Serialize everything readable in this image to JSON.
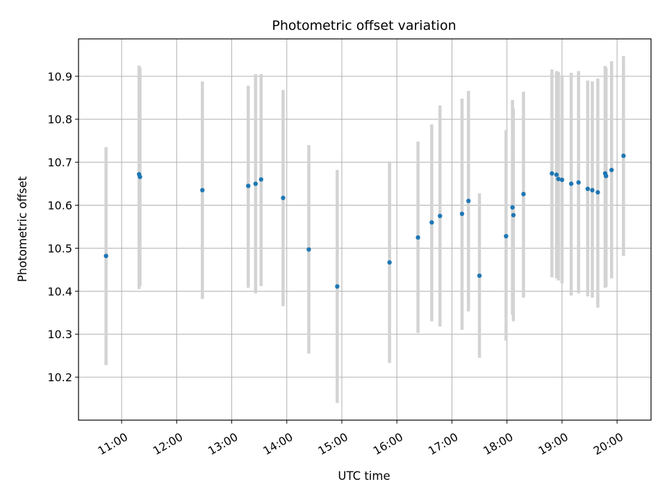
{
  "chart_data": {
    "type": "scatter",
    "title": "Photometric offset variation",
    "xlabel": "UTC time",
    "ylabel": "Photometric offset",
    "xlim": [
      "10:13",
      "20:37"
    ],
    "ylim": [
      10.1,
      10.987
    ],
    "x_ticks": [
      "11:00",
      "12:00",
      "13:00",
      "14:00",
      "15:00",
      "16:00",
      "17:00",
      "18:00",
      "19:00",
      "20:00"
    ],
    "y_ticks": [
      10.2,
      10.3,
      10.4,
      10.5,
      10.6,
      10.7,
      10.8,
      10.9
    ],
    "grid": true,
    "colors": {
      "point": "#1f77b4",
      "errorbar": "#d3d3d3",
      "grid": "#b0b0b0"
    },
    "points": [
      {
        "x": "10:43",
        "y": 10.482,
        "ylow": 10.228,
        "yhigh": 10.735
      },
      {
        "x": "11:19",
        "y": 10.672,
        "ylow": 10.405,
        "yhigh": 10.925
      },
      {
        "x": "11:20",
        "y": 10.666,
        "ylow": 10.412,
        "yhigh": 10.92
      },
      {
        "x": "12:28",
        "y": 10.635,
        "ylow": 10.382,
        "yhigh": 10.888
      },
      {
        "x": "13:18",
        "y": 10.645,
        "ylow": 10.408,
        "yhigh": 10.878
      },
      {
        "x": "13:26",
        "y": 10.65,
        "ylow": 10.395,
        "yhigh": 10.905
      },
      {
        "x": "13:32",
        "y": 10.66,
        "ylow": 10.412,
        "yhigh": 10.905
      },
      {
        "x": "13:56",
        "y": 10.617,
        "ylow": 10.365,
        "yhigh": 10.868
      },
      {
        "x": "14:24",
        "y": 10.497,
        "ylow": 10.255,
        "yhigh": 10.74
      },
      {
        "x": "14:55",
        "y": 10.411,
        "ylow": 10.14,
        "yhigh": 10.682
      },
      {
        "x": "15:52",
        "y": 10.467,
        "ylow": 10.233,
        "yhigh": 10.702
      },
      {
        "x": "16:23",
        "y": 10.525,
        "ylow": 10.303,
        "yhigh": 10.748
      },
      {
        "x": "16:38",
        "y": 10.56,
        "ylow": 10.33,
        "yhigh": 10.788
      },
      {
        "x": "16:47",
        "y": 10.575,
        "ylow": 10.318,
        "yhigh": 10.832
      },
      {
        "x": "17:11",
        "y": 10.58,
        "ylow": 10.31,
        "yhigh": 10.848
      },
      {
        "x": "17:18",
        "y": 10.61,
        "ylow": 10.353,
        "yhigh": 10.866
      },
      {
        "x": "17:30",
        "y": 10.436,
        "ylow": 10.245,
        "yhigh": 10.628
      },
      {
        "x": "17:59",
        "y": 10.528,
        "ylow": 10.285,
        "yhigh": 10.775
      },
      {
        "x": "18:06",
        "y": 10.595,
        "ylow": 10.345,
        "yhigh": 10.845
      },
      {
        "x": "18:07",
        "y": 10.577,
        "ylow": 10.33,
        "yhigh": 10.825
      },
      {
        "x": "18:18",
        "y": 10.626,
        "ylow": 10.385,
        "yhigh": 10.864
      },
      {
        "x": "18:49",
        "y": 10.674,
        "ylow": 10.432,
        "yhigh": 10.916
      },
      {
        "x": "18:54",
        "y": 10.671,
        "ylow": 10.43,
        "yhigh": 10.912
      },
      {
        "x": "18:56",
        "y": 10.661,
        "ylow": 10.425,
        "yhigh": 10.91
      },
      {
        "x": "19:00",
        "y": 10.659,
        "ylow": 10.418,
        "yhigh": 10.902
      },
      {
        "x": "19:10",
        "y": 10.65,
        "ylow": 10.39,
        "yhigh": 10.908
      },
      {
        "x": "19:18",
        "y": 10.653,
        "ylow": 10.395,
        "yhigh": 10.912
      },
      {
        "x": "19:28",
        "y": 10.638,
        "ylow": 10.388,
        "yhigh": 10.89
      },
      {
        "x": "19:33",
        "y": 10.635,
        "ylow": 10.385,
        "yhigh": 10.888
      },
      {
        "x": "19:39",
        "y": 10.63,
        "ylow": 10.362,
        "yhigh": 10.895
      },
      {
        "x": "19:47",
        "y": 10.674,
        "ylow": 10.408,
        "yhigh": 10.924
      },
      {
        "x": "19:48",
        "y": 10.668,
        "ylow": 10.41,
        "yhigh": 10.92
      },
      {
        "x": "19:54",
        "y": 10.682,
        "ylow": 10.43,
        "yhigh": 10.935
      },
      {
        "x": "20:07",
        "y": 10.715,
        "ylow": 10.482,
        "yhigh": 10.947
      }
    ]
  }
}
